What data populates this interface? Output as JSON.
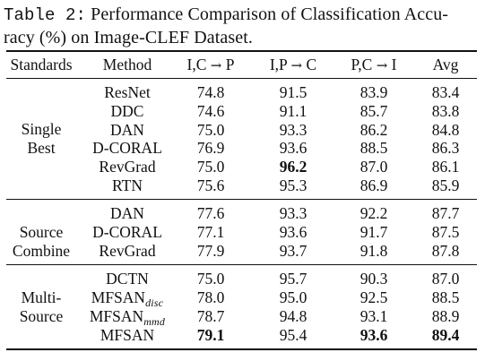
{
  "caption": {
    "label": "Table 2:",
    "line1": "Performance Comparison of Classification Accu-",
    "line2": "racy (%) on Image-CLEF Dataset."
  },
  "headers": {
    "standards": "Standards",
    "method": "Method",
    "col1_left": "I,C",
    "col1_right": "P",
    "col2_left": "I,P",
    "col2_right": "C",
    "col3_left": "P,C",
    "col3_right": "I",
    "avg": "Avg",
    "arrow": "→"
  },
  "groups": [
    {
      "label_lines": [
        "Single",
        "Best"
      ],
      "rows": [
        {
          "method": "ResNet",
          "sub": "",
          "v": [
            "74.8",
            "91.5",
            "83.9",
            "83.4"
          ],
          "bold": [
            false,
            false,
            false,
            false
          ]
        },
        {
          "method": "DDC",
          "sub": "",
          "v": [
            "74.6",
            "91.1",
            "85.7",
            "83.8"
          ],
          "bold": [
            false,
            false,
            false,
            false
          ]
        },
        {
          "method": "DAN",
          "sub": "",
          "v": [
            "75.0",
            "93.3",
            "86.2",
            "84.8"
          ],
          "bold": [
            false,
            false,
            false,
            false
          ]
        },
        {
          "method": "D-CORAL",
          "sub": "",
          "v": [
            "76.9",
            "93.6",
            "88.5",
            "86.3"
          ],
          "bold": [
            false,
            false,
            false,
            false
          ]
        },
        {
          "method": "RevGrad",
          "sub": "",
          "v": [
            "75.0",
            "96.2",
            "87.0",
            "86.1"
          ],
          "bold": [
            false,
            true,
            false,
            false
          ]
        },
        {
          "method": "RTN",
          "sub": "",
          "v": [
            "75.6",
            "95.3",
            "86.9",
            "85.9"
          ],
          "bold": [
            false,
            false,
            false,
            false
          ]
        }
      ]
    },
    {
      "label_lines": [
        "Source",
        "Combine"
      ],
      "rows": [
        {
          "method": "DAN",
          "sub": "",
          "v": [
            "77.6",
            "93.3",
            "92.2",
            "87.7"
          ],
          "bold": [
            false,
            false,
            false,
            false
          ]
        },
        {
          "method": "D-CORAL",
          "sub": "",
          "v": [
            "77.1",
            "93.6",
            "91.7",
            "87.5"
          ],
          "bold": [
            false,
            false,
            false,
            false
          ]
        },
        {
          "method": "RevGrad",
          "sub": "",
          "v": [
            "77.9",
            "93.7",
            "91.8",
            "87.8"
          ],
          "bold": [
            false,
            false,
            false,
            false
          ]
        }
      ]
    },
    {
      "label_lines": [
        "Multi-",
        "Source"
      ],
      "rows": [
        {
          "method": "DCTN",
          "sub": "",
          "v": [
            "75.0",
            "95.7",
            "90.3",
            "87.0"
          ],
          "bold": [
            false,
            false,
            false,
            false
          ]
        },
        {
          "method": "MFSAN",
          "sub": "disc",
          "v": [
            "78.0",
            "95.0",
            "92.5",
            "88.5"
          ],
          "bold": [
            false,
            false,
            false,
            false
          ]
        },
        {
          "method": "MFSAN",
          "sub": "mmd",
          "v": [
            "78.7",
            "94.8",
            "93.1",
            "88.9"
          ],
          "bold": [
            false,
            false,
            false,
            false
          ]
        },
        {
          "method": "MFSAN",
          "sub": "",
          "v": [
            "79.1",
            "95.4",
            "93.6",
            "89.4"
          ],
          "bold": [
            true,
            false,
            true,
            true
          ]
        }
      ]
    }
  ]
}
